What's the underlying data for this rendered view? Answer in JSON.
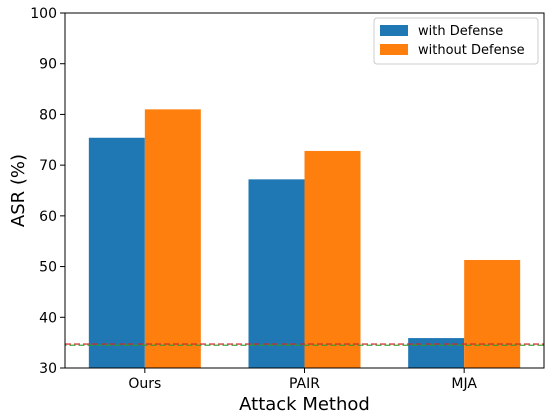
{
  "chart_data": {
    "type": "bar",
    "title": "",
    "xlabel": "Attack Method",
    "ylabel": "ASR (%)",
    "categories": [
      "Ours",
      "PAIR",
      "MJA"
    ],
    "series": [
      {
        "name": "with Defense",
        "values": [
          75.4,
          67.2,
          35.9
        ],
        "color": "#1f77b4"
      },
      {
        "name": "without Defense",
        "values": [
          81.0,
          72.8,
          51.3
        ],
        "color": "#ff7f0e"
      }
    ],
    "ylim": [
      30,
      100
    ],
    "yticks": [
      30,
      40,
      50,
      60,
      70,
      80,
      90,
      100
    ],
    "reference_lines": [
      {
        "value": 34.6,
        "style": "dashed",
        "colors": [
          "#d62728",
          "#2ca02c"
        ]
      }
    ],
    "grid": false,
    "legend_position": "top-right"
  }
}
